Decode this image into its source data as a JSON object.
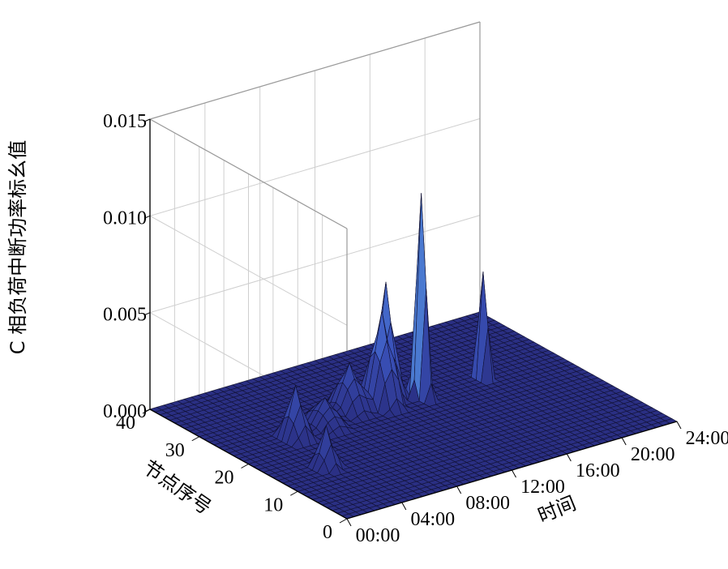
{
  "chart_data": {
    "type": "surface3d",
    "zlabel": "C 相负荷中断功率标幺值",
    "xlabel": "时间",
    "ylabel": "节点序号",
    "x_ticks": [
      "00:00",
      "04:00",
      "08:00",
      "12:00",
      "16:00",
      "20:00",
      "24:00"
    ],
    "y_ticks": [
      "0",
      "10",
      "20",
      "30",
      "40"
    ],
    "z_ticks": [
      "0.000",
      "0.005",
      "0.010",
      "0.015"
    ],
    "xlim": [
      0,
      24
    ],
    "ylim": [
      0,
      40
    ],
    "zlim": [
      0,
      0.015
    ],
    "grid": true,
    "colormap": [
      "#2a2f83",
      "#3c56c0",
      "#5ca6e4"
    ],
    "peaks": [
      {
        "time_h": 4.5,
        "node": 23,
        "value": 0.0027,
        "spread_h": 0.9,
        "spread_node": 3
      },
      {
        "time_h": 3.5,
        "node": 14,
        "value": 0.0021,
        "spread_h": 0.8,
        "spread_node": 2.5
      },
      {
        "time_h": 7.0,
        "node": 24,
        "value": 0.0014,
        "spread_h": 1.2,
        "spread_node": 4
      },
      {
        "time_h": 9.5,
        "node": 26,
        "value": 0.0024,
        "spread_h": 1.3,
        "spread_node": 3.5
      },
      {
        "time_h": 11.5,
        "node": 25,
        "value": 0.0048,
        "spread_h": 1.2,
        "spread_node": 3.5
      },
      {
        "time_h": 12.5,
        "node": 27,
        "value": 0.0058,
        "spread_h": 0.9,
        "spread_node": 3
      },
      {
        "time_h": 14.0,
        "node": 24,
        "value": 0.0105,
        "spread_h": 0.55,
        "spread_node": 2.2
      },
      {
        "time_h": 18.5,
        "node": 24,
        "value": 0.0055,
        "spread_h": 0.4,
        "spread_node": 2
      }
    ]
  }
}
